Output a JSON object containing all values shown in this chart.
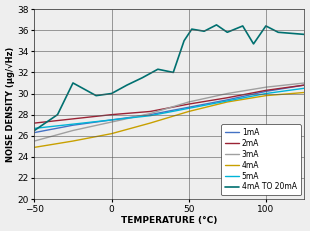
{
  "title": "",
  "xlabel": "TEMPERATURE (°C)",
  "ylabel": "NOISE DENSITY (µg/√Hz)",
  "xlim": [
    -50,
    125
  ],
  "ylim": [
    20,
    38
  ],
  "xticks": [
    -50,
    0,
    50,
    100
  ],
  "yticks": [
    20,
    22,
    24,
    26,
    28,
    30,
    32,
    34,
    36,
    38
  ],
  "lines": {
    "1mA": {
      "color": "#4472c4",
      "lw": 1.0,
      "x": [
        -50,
        -25,
        0,
        25,
        50,
        75,
        100,
        125
      ],
      "y": [
        26.3,
        27.0,
        27.5,
        28.0,
        28.7,
        29.4,
        30.2,
        30.8
      ]
    },
    "2mA": {
      "color": "#9b2335",
      "lw": 1.0,
      "x": [
        -50,
        -25,
        0,
        25,
        50,
        75,
        100,
        125
      ],
      "y": [
        27.2,
        27.6,
        28.0,
        28.3,
        29.0,
        29.6,
        30.3,
        30.8
      ]
    },
    "3mA": {
      "color": "#a0a0a0",
      "lw": 1.0,
      "x": [
        -50,
        -25,
        0,
        25,
        50,
        75,
        100,
        125
      ],
      "y": [
        25.5,
        26.5,
        27.3,
        28.1,
        29.2,
        30.0,
        30.6,
        31.0
      ]
    },
    "4mA": {
      "color": "#c8a000",
      "lw": 1.0,
      "x": [
        -50,
        -25,
        0,
        25,
        50,
        75,
        100,
        125
      ],
      "y": [
        24.9,
        25.5,
        26.2,
        27.2,
        28.3,
        29.2,
        29.8,
        30.1
      ]
    },
    "5mA": {
      "color": "#00b4d8",
      "lw": 1.0,
      "x": [
        -50,
        -25,
        0,
        25,
        50,
        75,
        100,
        125
      ],
      "y": [
        26.7,
        27.1,
        27.5,
        27.9,
        28.6,
        29.3,
        30.0,
        30.5
      ]
    },
    "4mA TO 20mA": {
      "color": "#007070",
      "lw": 1.2,
      "x": [
        -50,
        -35,
        -25,
        -10,
        0,
        10,
        20,
        30,
        40,
        47,
        52,
        60,
        68,
        75,
        85,
        92,
        100,
        108,
        125
      ],
      "y": [
        26.5,
        28.0,
        31.0,
        29.8,
        30.0,
        30.8,
        31.5,
        32.3,
        32.0,
        35.0,
        36.1,
        35.9,
        36.5,
        35.8,
        36.4,
        34.7,
        36.4,
        35.8,
        35.6
      ]
    }
  },
  "xlabel_fontsize": 6.5,
  "ylabel_fontsize": 6.0,
  "tick_fontsize": 6.5,
  "legend_fontsize": 5.5,
  "fig_width": 3.1,
  "fig_height": 2.31,
  "dpi": 100
}
